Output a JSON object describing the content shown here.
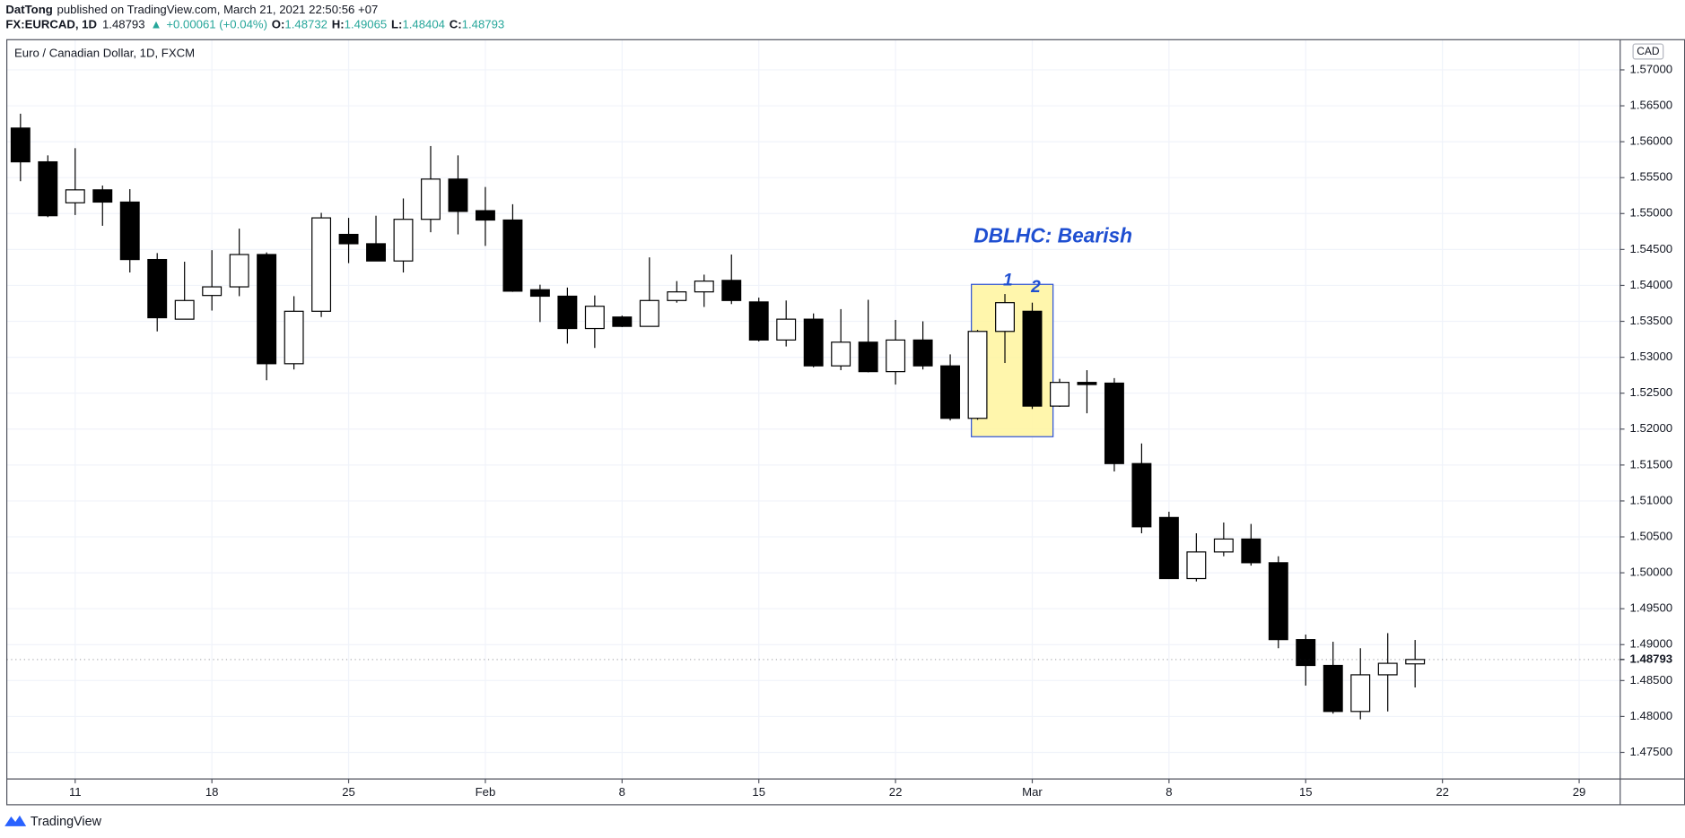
{
  "header": {
    "author": "DatTong",
    "published": "published on TradingView.com, March 21, 2021 22:50:56 +07",
    "symbol": "FX:EURCAD, 1D",
    "price": "1.48793",
    "arrow": "▲",
    "change": "+0.00061 (+0.04%)",
    "o_label": "O:",
    "o": "1.48732",
    "h_label": "H:",
    "h": "1.49065",
    "l_label": "L:",
    "l": "1.48404",
    "c_label": "C:",
    "c": "1.48793"
  },
  "footer": "TradingView",
  "chart_data": {
    "type": "candlestick",
    "title": "Euro / Canadian Dollar, 1D, FXCM",
    "currency": "CAD",
    "categories": [
      null,
      null,
      "11",
      null,
      null,
      null,
      null,
      "18",
      null,
      null,
      null,
      null,
      "25",
      null,
      null,
      null,
      null,
      "Feb",
      null,
      null,
      null,
      null,
      "8",
      null,
      null,
      null,
      null,
      "15",
      null,
      null,
      null,
      null,
      "22",
      null,
      null,
      null,
      null,
      "Mar",
      null,
      null,
      null,
      null,
      "8",
      null,
      null,
      null,
      null,
      "15",
      null,
      null,
      null,
      null,
      "22",
      null,
      null,
      null,
      null,
      "29",
      null
    ],
    "open": [
      1.5619,
      1.5572,
      1.5515,
      1.5533,
      1.5516,
      1.5436,
      1.5353,
      1.5386,
      1.5398,
      1.5443,
      1.5291,
      1.5364,
      1.5471,
      1.5458,
      1.5434,
      1.5492,
      1.5548,
      1.5504,
      1.5491,
      1.5394,
      1.5385,
      1.534,
      1.5356,
      1.5343,
      1.5379,
      1.5391,
      1.5407,
      1.5377,
      1.5324,
      1.5353,
      1.5288,
      1.5321,
      1.528,
      1.5324,
      1.5288,
      1.5215,
      1.5336,
      1.5364,
      1.5232,
      1.5265,
      1.5264,
      1.5152,
      1.5077,
      1.4992,
      1.5029,
      1.5047,
      1.5014,
      1.4907,
      1.4871,
      1.4807,
      1.4858,
      1.48732,
      null,
      null,
      null,
      null,
      null,
      null,
      null
    ],
    "high": [
      1.5639,
      1.5581,
      1.5591,
      1.5539,
      1.5534,
      1.5445,
      1.5433,
      1.5449,
      1.5479,
      1.5446,
      1.5385,
      1.5501,
      1.5494,
      1.5497,
      1.5521,
      1.5594,
      1.5581,
      1.5537,
      1.5513,
      1.5401,
      1.5397,
      1.5386,
      1.5358,
      1.5439,
      1.5406,
      1.5415,
      1.5443,
      1.5383,
      1.5379,
      1.5361,
      1.5367,
      1.538,
      1.5352,
      1.535,
      1.5304,
      1.5338,
      1.5388,
      1.5376,
      1.527,
      1.5282,
      1.5271,
      1.518,
      1.5085,
      1.5055,
      1.507,
      1.5068,
      1.5023,
      1.4914,
      1.4904,
      1.4895,
      1.4916,
      1.49065,
      null,
      null,
      null,
      null,
      null,
      null,
      null
    ],
    "low": [
      1.5545,
      1.5495,
      1.5498,
      1.5483,
      1.5418,
      1.5336,
      1.5353,
      1.5365,
      1.5385,
      1.5268,
      1.5283,
      1.5356,
      1.5431,
      1.5434,
      1.5418,
      1.5474,
      1.5471,
      1.5455,
      1.5391,
      1.5349,
      1.5319,
      1.5313,
      1.5342,
      1.5343,
      1.5376,
      1.537,
      1.5374,
      1.5322,
      1.5315,
      1.5286,
      1.5282,
      1.5279,
      1.5262,
      1.5283,
      1.5212,
      1.5213,
      1.5292,
      1.5228,
      1.5231,
      1.5222,
      1.5141,
      1.5055,
      1.4992,
      1.4988,
      1.5023,
      1.501,
      1.4895,
      1.4843,
      1.4804,
      1.4796,
      1.4807,
      1.48404,
      null,
      null,
      null,
      null,
      null,
      null,
      null
    ],
    "close": [
      1.5572,
      1.5497,
      1.5533,
      1.5516,
      1.5436,
      1.5355,
      1.5379,
      1.5398,
      1.5443,
      1.5291,
      1.5364,
      1.5494,
      1.5458,
      1.5434,
      1.5492,
      1.5548,
      1.5503,
      1.5491,
      1.5392,
      1.5385,
      1.534,
      1.5371,
      1.5343,
      1.5379,
      1.5391,
      1.5406,
      1.5379,
      1.5324,
      1.5353,
      1.5288,
      1.5321,
      1.528,
      1.5324,
      1.5288,
      1.5215,
      1.5336,
      1.5376,
      1.5232,
      1.5265,
      1.5262,
      1.5152,
      1.5064,
      1.4992,
      1.5029,
      1.5047,
      1.5014,
      1.4907,
      1.4871,
      1.4807,
      1.4858,
      1.4874,
      1.48793,
      null,
      null,
      null,
      null,
      null,
      null,
      null
    ],
    "up_color": "#ffffff",
    "down_color": "#000000",
    "wick_color": "#000000",
    "ylim": [
      1.4713,
      1.5742
    ],
    "yticks": [
      {
        "value": 1.475,
        "label": "1.47500"
      },
      {
        "value": 1.48,
        "label": "1.48000"
      },
      {
        "value": 1.485,
        "label": "1.48500"
      },
      {
        "value": 1.49,
        "label": "1.49000"
      },
      {
        "value": 1.495,
        "label": "1.49500"
      },
      {
        "value": 1.5,
        "label": "1.50000"
      },
      {
        "value": 1.505,
        "label": "1.50500"
      },
      {
        "value": 1.51,
        "label": "1.51000"
      },
      {
        "value": 1.515,
        "label": "1.51500"
      },
      {
        "value": 1.52,
        "label": "1.52000"
      },
      {
        "value": 1.525,
        "label": "1.52500"
      },
      {
        "value": 1.53,
        "label": "1.53000"
      },
      {
        "value": 1.535,
        "label": "1.53500"
      },
      {
        "value": 1.54,
        "label": "1.54000"
      },
      {
        "value": 1.545,
        "label": "1.54500"
      },
      {
        "value": 1.55,
        "label": "1.55000"
      },
      {
        "value": 1.555,
        "label": "1.55500"
      },
      {
        "value": 1.56,
        "label": "1.56000"
      },
      {
        "value": 1.565,
        "label": "1.56500"
      },
      {
        "value": 1.57,
        "label": "1.57000"
      }
    ],
    "last_price": {
      "value": 1.48793,
      "label": "1.48793"
    },
    "grid": true,
    "annotations": [
      "DBLHC: Bearish",
      "1",
      "2"
    ]
  }
}
